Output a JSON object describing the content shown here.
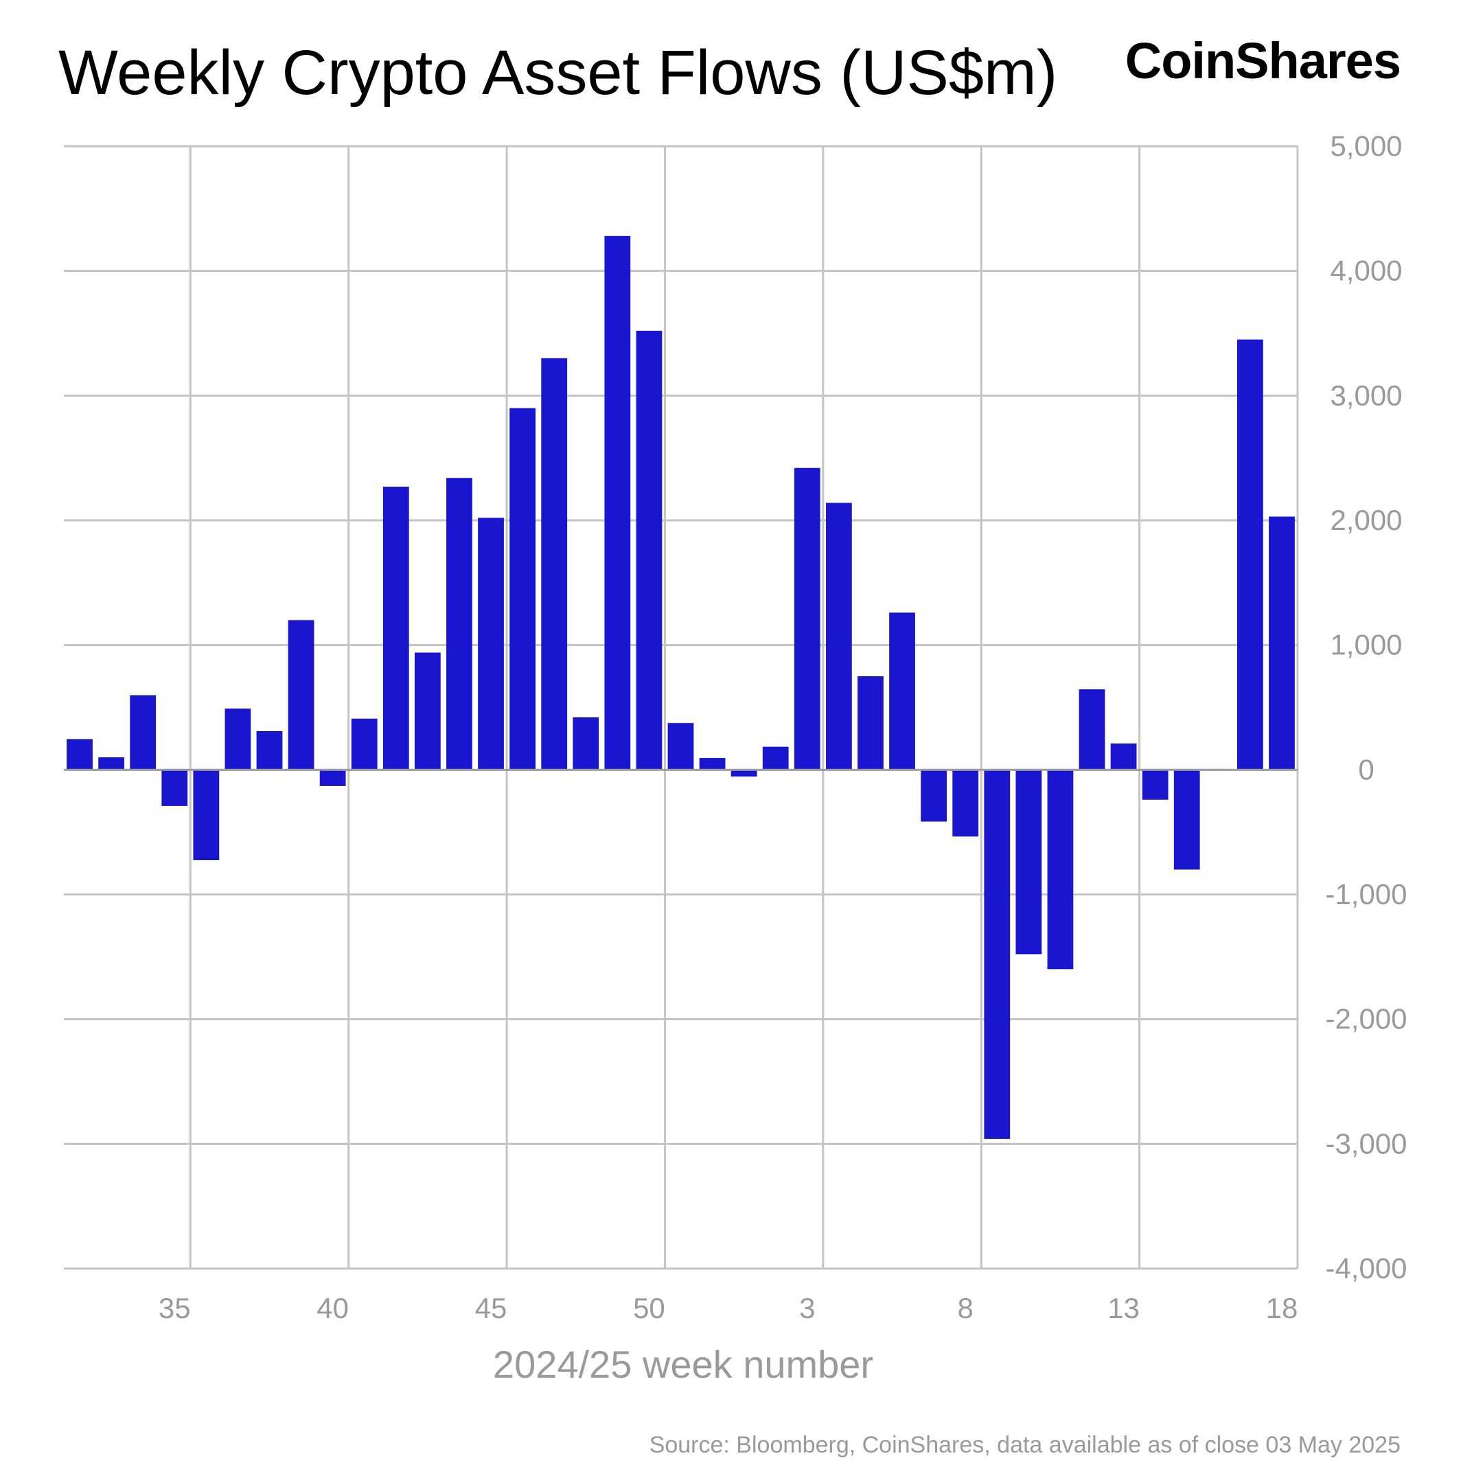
{
  "title": "Weekly Crypto Asset Flows (US$m)",
  "brand": "CoinShares",
  "source": "Source: Bloomberg, CoinShares, data available as of close 03 May 2025",
  "colors": {
    "bar": "#1a16d0",
    "grid": "#c4c4c4",
    "axis_text": "#9a9a9a",
    "zero_line": "#9e9e9e"
  },
  "chart_data": {
    "type": "bar",
    "xlabel": "2024/25 week number",
    "ylabel": "",
    "ylim": [
      -4000,
      5000
    ],
    "yticks": [
      5000,
      4000,
      3000,
      2000,
      1000,
      0,
      -1000,
      -2000,
      -3000,
      -4000
    ],
    "ytick_labels": [
      "5,000",
      "4,000",
      "3,000",
      "2,000",
      "1,000",
      "0",
      "-1,000",
      "-2,000",
      "-3,000",
      "-4,000"
    ],
    "y_axis_side": "right",
    "grid": true,
    "categories": [
      "32",
      "33",
      "34",
      "35",
      "36",
      "37",
      "38",
      "39",
      "40",
      "41",
      "42",
      "43",
      "44",
      "45",
      "46",
      "47",
      "48",
      "49",
      "50",
      "51",
      "52",
      "1",
      "2",
      "3",
      "4",
      "5",
      "6",
      "7",
      "8",
      "9",
      "10",
      "11",
      "12",
      "13",
      "14",
      "15",
      "16",
      "17",
      "18"
    ],
    "xtick_labels": [
      "35",
      "40",
      "45",
      "50",
      "3",
      "8",
      "13",
      "18"
    ],
    "values": [
      245,
      100,
      597,
      -290,
      -725,
      490,
      310,
      1200,
      -130,
      410,
      2270,
      940,
      2340,
      2020,
      2900,
      3300,
      420,
      4280,
      3520,
      375,
      95,
      -55,
      185,
      2420,
      2140,
      750,
      1260,
      -415,
      -535,
      -2960,
      -1480,
      -1600,
      645,
      210,
      -240,
      -800,
      0,
      3450,
      2030
    ]
  }
}
